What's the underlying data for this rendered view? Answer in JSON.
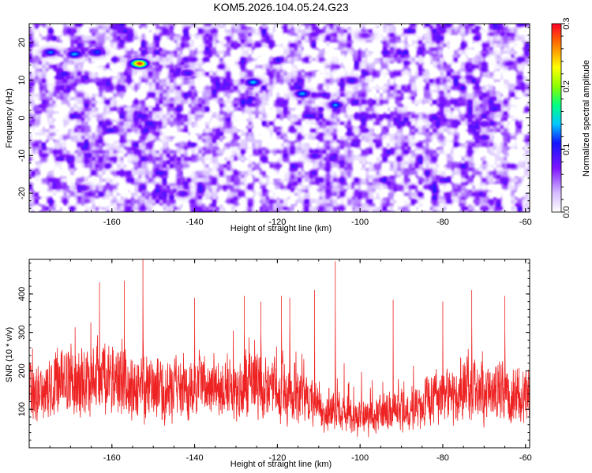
{
  "title": "KOM5.2026.104.05.24.G23",
  "chart_data": [
    {
      "type": "heatmap",
      "xlabel": "Height of straight line (km)",
      "ylabel": "Frequency (Hz)",
      "xlim": [
        -180,
        -59
      ],
      "ylim": [
        -25,
        25
      ],
      "x_ticks": [
        -160,
        -140,
        -120,
        -100,
        -80,
        -60
      ],
      "x_tick_labels": [
        "-160",
        "-140",
        "-120",
        "-100",
        "-80",
        "-60"
      ],
      "y_ticks": [
        -20,
        -10,
        0,
        10,
        20
      ],
      "y_tick_labels": [
        "-20",
        "-10",
        "0",
        "10",
        "20"
      ],
      "hotspots": [
        {
          "x": -153.5,
          "y": 14.5,
          "v": 0.3
        },
        {
          "x": -169,
          "y": 17,
          "v": 0.14
        },
        {
          "x": -164,
          "y": 17.5,
          "v": 0.13
        },
        {
          "x": -175,
          "y": 17.5,
          "v": 0.12
        },
        {
          "x": -126,
          "y": 9.5,
          "v": 0.15
        },
        {
          "x": -114,
          "y": 6.5,
          "v": 0.14
        },
        {
          "x": -106,
          "y": 3.5,
          "v": 0.13
        },
        {
          "x": -142,
          "y": 12,
          "v": 0.11
        },
        {
          "x": -102,
          "y": 10,
          "v": 0.1
        },
        {
          "x": -111,
          "y": -10,
          "v": 0.1
        },
        {
          "x": -143,
          "y": -20,
          "v": 0.09
        },
        {
          "x": -167,
          "y": -18.5,
          "v": 0.09
        },
        {
          "x": -82,
          "y": 0,
          "v": 0.09
        },
        {
          "x": -70,
          "y": -1.5,
          "v": 0.09
        },
        {
          "x": -64,
          "y": 14.5,
          "v": 0.08
        },
        {
          "x": -99,
          "y": 22,
          "v": 0.08
        }
      ],
      "background_level": 0.035,
      "colorbar": {
        "label": "Normalized spectral amplitude",
        "range": [
          0.0,
          0.3
        ],
        "ticks": [
          0.0,
          0.1,
          0.2,
          0.3
        ],
        "tick_labels": [
          "0.0",
          "0.1",
          "0.2",
          "0.3"
        ],
        "colors": [
          "#ffffff",
          "#7a00ff",
          "#0000ff",
          "#00c8ff",
          "#00ff80",
          "#80ff00",
          "#ffff00",
          "#ff8000",
          "#ff0000",
          "#ff0080"
        ]
      }
    },
    {
      "type": "line",
      "xlabel": "Height of straight line (km)",
      "ylabel": "SNR (10 * v/v)",
      "xlim": [
        -180,
        -59
      ],
      "ylim": [
        0,
        490
      ],
      "x_ticks": [
        -160,
        -140,
        -120,
        -100,
        -80,
        -60
      ],
      "x_tick_labels": [
        "-160",
        "-140",
        "-120",
        "-100",
        "-80",
        "-60"
      ],
      "y_ticks": [
        100,
        200,
        300,
        400
      ],
      "y_tick_labels": [
        "100",
        "200",
        "300",
        "400"
      ],
      "series_color": "#ee2222",
      "sample_step_km": 0.05,
      "baseline_mean": 140,
      "peaks": [
        {
          "x": -163,
          "y": 430
        },
        {
          "x": -157,
          "y": 435
        },
        {
          "x": -152.5,
          "y": 490
        },
        {
          "x": -140,
          "y": 390
        },
        {
          "x": -128,
          "y": 395
        },
        {
          "x": -124,
          "y": 380
        },
        {
          "x": -119,
          "y": 395
        },
        {
          "x": -117,
          "y": 390
        },
        {
          "x": -111,
          "y": 410
        },
        {
          "x": -106,
          "y": 485
        },
        {
          "x": -92,
          "y": 385
        },
        {
          "x": -80,
          "y": 380
        },
        {
          "x": -73,
          "y": 410
        },
        {
          "x": -65,
          "y": 395
        }
      ]
    }
  ]
}
